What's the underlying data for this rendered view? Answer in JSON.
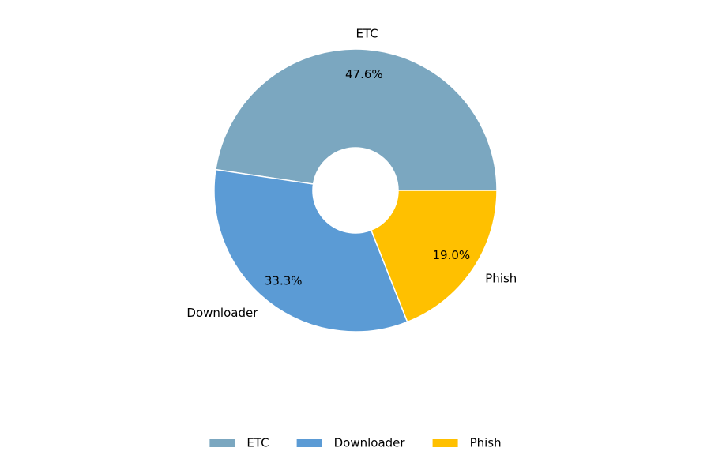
{
  "chart_data": {
    "type": "donut",
    "categories": [
      "ETC",
      "Downloader",
      "Phish"
    ],
    "values": [
      47.6,
      33.3,
      19.0
    ],
    "value_labels": [
      "47.6%",
      "33.3%",
      "19.0%"
    ],
    "colors": [
      "#7ba7c0",
      "#5b9bd5",
      "#ffc000"
    ],
    "legend": "bottom"
  }
}
